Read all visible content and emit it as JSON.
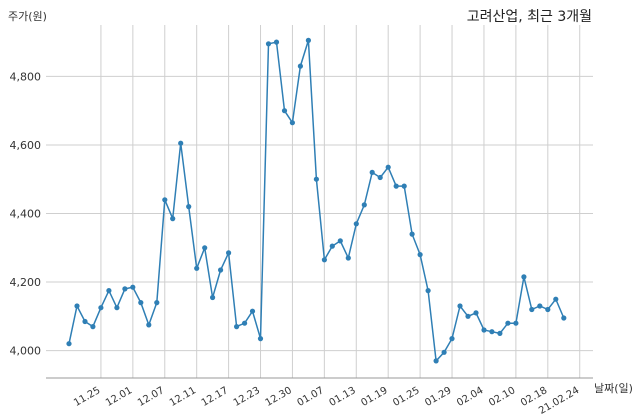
{
  "chart_data": {
    "type": "line",
    "title": "고려산업, 최근 3개월",
    "ylabel": "주가(원)",
    "xlabel": "날짜(일)",
    "ylim": [
      3920,
      4950
    ],
    "y_ticks": [
      "4,000",
      "4,200",
      "4,400",
      "4,600",
      "4,800"
    ],
    "y_tick_values": [
      4000,
      4200,
      4400,
      4600,
      4800
    ],
    "x_tick_labels": [
      "11.25",
      "12.01",
      "12.07",
      "12.11",
      "12.17",
      "12.23",
      "12.30",
      "01.07",
      "01.13",
      "01.19",
      "01.25",
      "01.29",
      "02.04",
      "02.10",
      "02.18",
      "21.02.24"
    ],
    "x_tick_positions": [
      4,
      8,
      12,
      16,
      20,
      24,
      28,
      32,
      36,
      40,
      44,
      48,
      52,
      56,
      60,
      64
    ],
    "grid": true,
    "series": [
      {
        "color": "#2f7fb5",
        "x": [
          0,
          1,
          2,
          3,
          4,
          5,
          6,
          7,
          8,
          9,
          10,
          11,
          12,
          13,
          14,
          15,
          16,
          17,
          18,
          19,
          20,
          21,
          22,
          23,
          24,
          25,
          26,
          27,
          28,
          29,
          30,
          31,
          32,
          33,
          34,
          35,
          36,
          37,
          38,
          39,
          40,
          41,
          42,
          43,
          44,
          45,
          46,
          47,
          48,
          49,
          50,
          51,
          52,
          53,
          54,
          55,
          56,
          57,
          58,
          59,
          60,
          61,
          62,
          63,
          64
        ],
        "values": [
          4020,
          4130,
          4085,
          4070,
          4125,
          4175,
          4125,
          4180,
          4185,
          4140,
          4075,
          4140,
          4440,
          4385,
          4605,
          4420,
          4240,
          4300,
          4155,
          4235,
          4285,
          4070,
          4080,
          4115,
          4035,
          4895,
          4900,
          4700,
          4665,
          4830,
          4905,
          4500,
          4265,
          4305,
          4320,
          4270,
          4370,
          4425,
          4520,
          4505,
          4535,
          4480,
          4480,
          4340,
          4280,
          4175,
          3970,
          3995,
          4035,
          4130,
          4100,
          4110,
          4060,
          4055,
          4050,
          4080,
          4080,
          4215,
          4120,
          4130,
          4120,
          4150,
          4095,
          null,
          null
        ]
      }
    ]
  }
}
